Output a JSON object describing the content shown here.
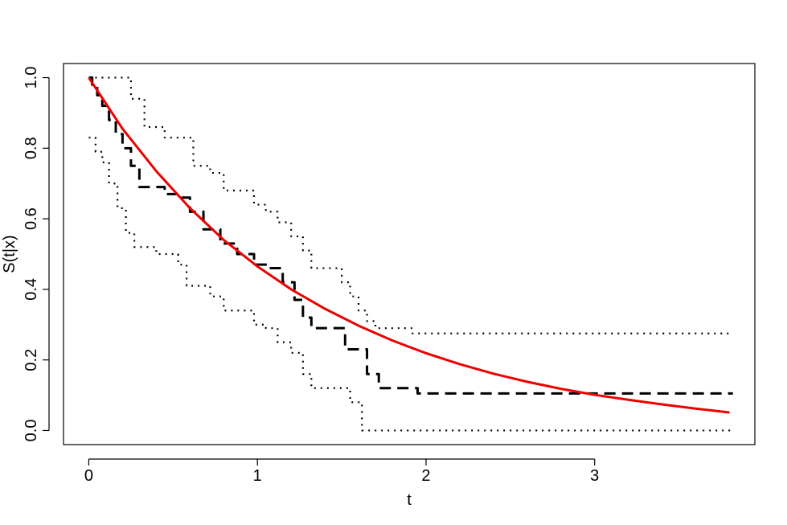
{
  "chart_data": {
    "type": "line",
    "title": "",
    "xlabel": "t",
    "ylabel": "S(t|x)",
    "xlim": [
      -0.15,
      3.95
    ],
    "ylim": [
      -0.04,
      1.04
    ],
    "x_ticks": [
      0,
      1,
      2,
      3
    ],
    "x_tick_labels": [
      "0",
      "1",
      "2",
      "3"
    ],
    "y_ticks": [
      0.0,
      0.2,
      0.4,
      0.6,
      0.8,
      1.0
    ],
    "y_tick_labels": [
      "0.0",
      "0.2",
      "0.4",
      "0.6",
      "0.8",
      "1.0"
    ],
    "grid": false,
    "colors": {
      "estimate": "#000000",
      "bounds": "#000000",
      "model": "#ee0000"
    },
    "series": [
      {
        "style": "dashed",
        "step": true,
        "x": [
          0,
          0.02,
          0.05,
          0.08,
          0.12,
          0.16,
          0.2,
          0.25,
          0.3,
          0.38,
          0.45,
          0.55,
          0.6,
          0.68,
          0.78,
          0.88,
          0.98,
          1.07,
          1.15,
          1.22,
          1.27,
          1.32,
          1.45,
          1.52,
          1.58,
          1.65,
          1.72,
          1.95,
          3.82
        ],
        "y": [
          1.0,
          0.98,
          0.95,
          0.92,
          0.88,
          0.84,
          0.8,
          0.75,
          0.69,
          0.69,
          0.67,
          0.66,
          0.62,
          0.57,
          0.53,
          0.5,
          0.47,
          0.46,
          0.42,
          0.37,
          0.32,
          0.29,
          0.29,
          0.23,
          0.23,
          0.16,
          0.12,
          0.105,
          0.105
        ]
      },
      {
        "style": "dotted",
        "step": true,
        "x": [
          0,
          0.18,
          0.25,
          0.33,
          0.4,
          0.45,
          0.55,
          0.62,
          0.66,
          0.72,
          0.8,
          0.88,
          0.98,
          1.05,
          1.12,
          1.2,
          1.27,
          1.32,
          1.38,
          1.5,
          1.55,
          1.6,
          1.65,
          1.7,
          1.75,
          1.92,
          3.82
        ],
        "y": [
          1.0,
          1.0,
          0.94,
          0.86,
          0.86,
          0.83,
          0.83,
          0.75,
          0.75,
          0.73,
          0.68,
          0.68,
          0.64,
          0.62,
          0.59,
          0.55,
          0.51,
          0.46,
          0.46,
          0.42,
          0.38,
          0.34,
          0.31,
          0.29,
          0.29,
          0.275,
          0.275
        ]
      },
      {
        "style": "dotted",
        "step": true,
        "x": [
          0,
          0.04,
          0.08,
          0.12,
          0.17,
          0.22,
          0.27,
          0.32,
          0.4,
          0.45,
          0.53,
          0.58,
          0.63,
          0.72,
          0.8,
          0.9,
          0.98,
          1.05,
          1.12,
          1.2,
          1.27,
          1.32,
          1.5,
          1.55,
          1.62,
          1.95,
          3.82
        ],
        "y": [
          0.83,
          0.79,
          0.76,
          0.7,
          0.63,
          0.56,
          0.52,
          0.52,
          0.5,
          0.5,
          0.47,
          0.41,
          0.41,
          0.38,
          0.34,
          0.34,
          0.3,
          0.29,
          0.25,
          0.22,
          0.16,
          0.12,
          0.12,
          0.08,
          0.0,
          0.0,
          0.0
        ]
      },
      {
        "style": "solid",
        "step": false,
        "x": [
          0,
          0.2,
          0.4,
          0.6,
          0.8,
          1.0,
          1.2,
          1.4,
          1.6,
          1.8,
          2.0,
          2.2,
          2.4,
          2.6,
          2.8,
          3.0,
          3.2,
          3.4,
          3.6,
          3.8
        ],
        "y": [
          1.0,
          0.855,
          0.735,
          0.63,
          0.54,
          0.465,
          0.4,
          0.345,
          0.297,
          0.255,
          0.219,
          0.188,
          0.161,
          0.138,
          0.118,
          0.101,
          0.087,
          0.074,
          0.062,
          0.051
        ]
      }
    ]
  }
}
